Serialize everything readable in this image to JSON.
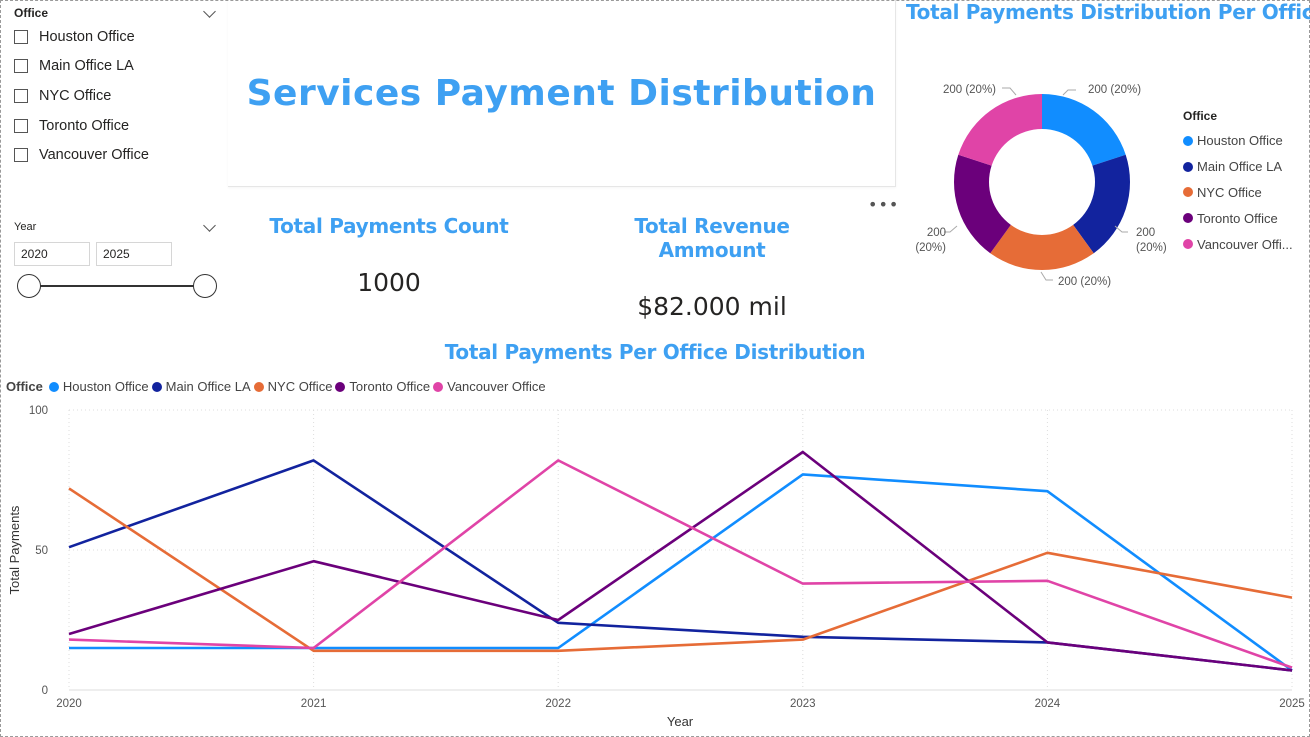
{
  "office_slicer": {
    "title": "Office",
    "options": [
      "Houston Office",
      "Main Office LA",
      "NYC Office",
      "Toronto Office",
      "Vancouver Office"
    ]
  },
  "year_slicer": {
    "title": "Year",
    "from": "2020",
    "to": "2025"
  },
  "report_title": "Services Payment Distribution",
  "kpis": {
    "count_title": "Total Payments Count",
    "count_value": "1000",
    "revenue_title": "Total Revenue Ammount",
    "revenue_value": "$82.000 mil"
  },
  "colors": {
    "Houston Office": "#118dff",
    "Main Office LA": "#12239e",
    "NYC Office": "#e66c37",
    "Toronto Office": "#6b007b",
    "Vancouver Office": "#e044a7",
    "accent": "#3ea0f2"
  },
  "chart_data": [
    {
      "type": "pie",
      "title": "Total Payments Distribution Per Office",
      "legend_title": "Office",
      "legend_labels": [
        "Houston Office",
        "Main Office LA",
        "NYC Office",
        "Toronto Office",
        "Vancouver Offi..."
      ],
      "categories": [
        "Houston Office",
        "Main Office LA",
        "NYC Office",
        "Toronto Office",
        "Vancouver Office"
      ],
      "values": [
        200,
        200,
        200,
        200,
        200
      ],
      "data_labels": [
        "200 (20%)",
        "200 (20%)",
        "200 (20%)",
        "200 (20%)",
        "200 (20%)"
      ],
      "legend_position": "right"
    },
    {
      "type": "line",
      "title": "Total Payments Per Office Distribution",
      "legend_title": "Office",
      "legend_position": "top-left",
      "xlabel": "Year",
      "ylabel": "Total Payments",
      "x": [
        2020,
        2021,
        2022,
        2023,
        2024,
        2025
      ],
      "ylim": [
        0,
        100
      ],
      "yticks": [
        0,
        50,
        100
      ],
      "grid": true,
      "series": [
        {
          "name": "Houston Office",
          "values": [
            15,
            15,
            15,
            77,
            71,
            7
          ]
        },
        {
          "name": "Main Office LA",
          "values": [
            51,
            82,
            24,
            19,
            17,
            7
          ]
        },
        {
          "name": "NYC Office",
          "values": [
            72,
            14,
            14,
            18,
            49,
            33
          ]
        },
        {
          "name": "Toronto Office",
          "values": [
            20,
            46,
            25,
            85,
            17,
            7
          ]
        },
        {
          "name": "Vancouver Office",
          "values": [
            18,
            15,
            82,
            38,
            39,
            8
          ]
        }
      ]
    }
  ]
}
